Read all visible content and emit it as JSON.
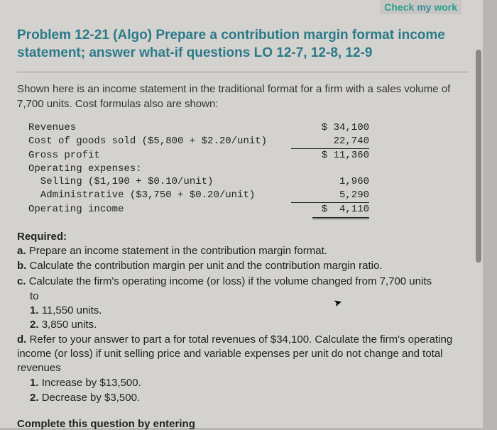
{
  "header": {
    "check_label": "Check",
    "my_label": "my",
    "work_label": "work"
  },
  "problem": {
    "title": "Problem 12-21 (Algo) Prepare a contribution margin format income statement; answer what-if questions LO 12-7, 12-8, 12-9",
    "intro": "Shown here is an income statement in the traditional format for a firm with a sales volume of 7,700 units. Cost formulas also are shown:"
  },
  "income_statement": {
    "rows": [
      {
        "label": "Revenues",
        "value": "$ 34,100"
      },
      {
        "label": "Cost of goods sold ($5,800 + $2.20/unit)",
        "value": "22,740"
      },
      {
        "label": "Gross profit",
        "value": "$ 11,360"
      },
      {
        "label": "Operating expenses:",
        "value": ""
      },
      {
        "label": "  Selling ($1,190 + $0.10/unit)",
        "value": "1,960"
      },
      {
        "label": "  Administrative ($3,750 + $0.20/unit)",
        "value": "5,290"
      },
      {
        "label": "Operating income",
        "value": "$  4,110"
      }
    ],
    "font_family": "Courier New",
    "font_size": 14,
    "text_color": "#222222"
  },
  "required": {
    "heading": "Required:",
    "a": "Prepare an income statement in the contribution margin format.",
    "b": "Calculate the contribution margin per unit and the contribution margin ratio.",
    "c_lead": "Calculate the firm's operating income (or loss) if the volume changed from 7,700 units",
    "c_to": "to",
    "c1": "11,550 units.",
    "c2": "3,850 units.",
    "d_lead": "Refer to your answer to part a for total revenues of $34,100. Calculate the firm's operating income (or loss) if unit selling price and variable expenses per unit do not change and total revenues",
    "d1": "Increase by $13,500.",
    "d2": "Decrease by $3,500."
  },
  "footer": {
    "complete": "Complete this question by entering"
  },
  "colors": {
    "page_bg": "#d4d2ce",
    "outer_bg": "#b8b6b2",
    "title_color": "#2a7a8a",
    "text_color": "#222222",
    "divider_color": "#9a9894",
    "scrollbar_color": "#8a8884",
    "check_color": "#2a9d8f"
  },
  "typography": {
    "title_fontsize": 19,
    "body_fontsize": 15,
    "mono_fontsize": 14
  }
}
